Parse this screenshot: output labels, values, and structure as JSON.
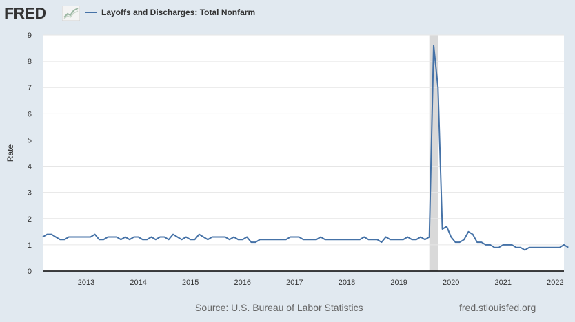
{
  "header": {
    "logo_text": "FRED",
    "logo_icon": "line-chart-icon",
    "legend_label": "Layoffs and Discharges: Total Nonfarm"
  },
  "footer": {
    "source": "Source: U.S. Bureau of Labor Statistics",
    "url": "fred.stlouisfed.org"
  },
  "colors": {
    "series": "#4572a7",
    "recession": "#d9d9d9",
    "plot_bg": "#ffffff",
    "page_bg": "#e1e9f0"
  },
  "chart_data": {
    "type": "line",
    "title": "",
    "xlabel": "",
    "ylabel": "Rate",
    "ylim": [
      0,
      9
    ],
    "yticks": [
      "0",
      "1",
      "2",
      "3",
      "4",
      "5",
      "6",
      "7",
      "8",
      "9"
    ],
    "xlim": [
      "2012-09",
      "2022-09"
    ],
    "xticks": [
      "2013",
      "2014",
      "2015",
      "2016",
      "2017",
      "2018",
      "2019",
      "2020",
      "2021",
      "2022"
    ],
    "grid": "horizontal",
    "recession_shading": [
      [
        "2020-02",
        "2020-04"
      ]
    ],
    "series": [
      {
        "name": "Layoffs and Discharges: Total Nonfarm",
        "start": "2012-09",
        "frequency": "monthly",
        "values": [
          1.3,
          1.4,
          1.4,
          1.3,
          1.2,
          1.2,
          1.3,
          1.3,
          1.3,
          1.3,
          1.3,
          1.3,
          1.4,
          1.2,
          1.2,
          1.3,
          1.3,
          1.3,
          1.2,
          1.3,
          1.2,
          1.3,
          1.3,
          1.2,
          1.2,
          1.3,
          1.2,
          1.3,
          1.3,
          1.2,
          1.4,
          1.3,
          1.2,
          1.3,
          1.2,
          1.2,
          1.4,
          1.3,
          1.2,
          1.3,
          1.3,
          1.3,
          1.3,
          1.2,
          1.3,
          1.2,
          1.2,
          1.3,
          1.1,
          1.1,
          1.2,
          1.2,
          1.2,
          1.2,
          1.2,
          1.2,
          1.2,
          1.3,
          1.3,
          1.3,
          1.2,
          1.2,
          1.2,
          1.2,
          1.3,
          1.2,
          1.2,
          1.2,
          1.2,
          1.2,
          1.2,
          1.2,
          1.2,
          1.2,
          1.3,
          1.2,
          1.2,
          1.2,
          1.1,
          1.3,
          1.2,
          1.2,
          1.2,
          1.2,
          1.3,
          1.2,
          1.2,
          1.3,
          1.2,
          1.3,
          8.6,
          7.0,
          1.6,
          1.7,
          1.3,
          1.1,
          1.1,
          1.2,
          1.5,
          1.4,
          1.1,
          1.1,
          1.0,
          1.0,
          0.9,
          0.9,
          1.0,
          1.0,
          1.0,
          0.9,
          0.9,
          0.8,
          0.9,
          0.9,
          0.9,
          0.9,
          0.9,
          0.9,
          0.9,
          0.9,
          1.0,
          0.9
        ]
      }
    ]
  }
}
